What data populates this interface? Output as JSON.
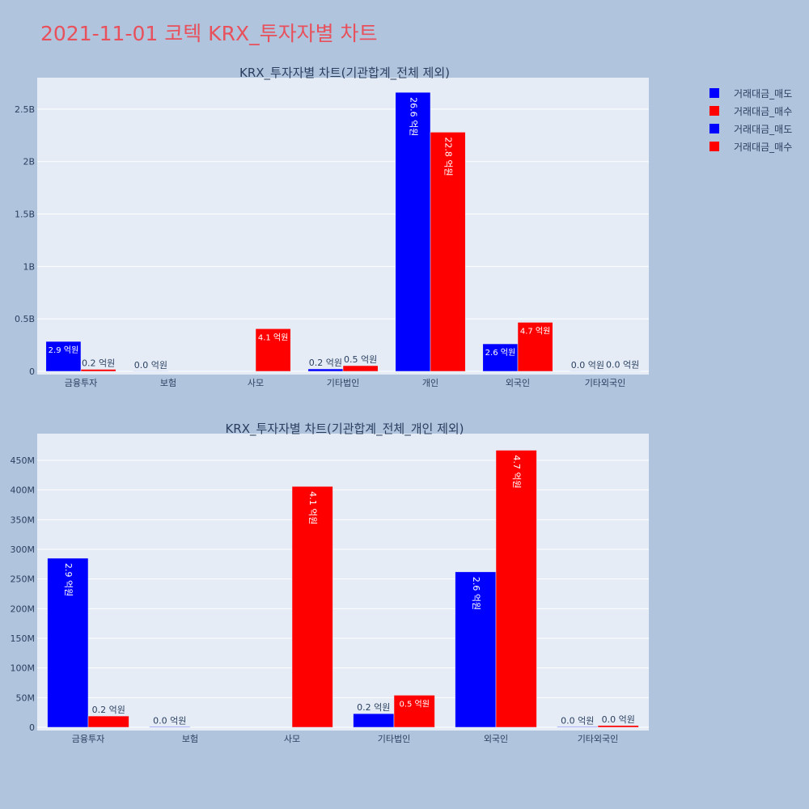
{
  "title": "2021-11-01 코텍 KRX_투자자별 차트",
  "colors": {
    "sell": "#0000ff",
    "buy": "#ff0000",
    "plot_bg": "#e5ecf6",
    "paper_bg": "#b0c4de",
    "text": "#2a3f5f"
  },
  "legend": [
    {
      "label": "거래대금_매도",
      "color": "#0000ff"
    },
    {
      "label": "거래대금_매수",
      "color": "#ff0000"
    },
    {
      "label": "거래대금_매도",
      "color": "#0000ff"
    },
    {
      "label": "거래대금_매수",
      "color": "#ff0000"
    }
  ],
  "chart_data": [
    {
      "type": "bar",
      "title": "KRX_투자자별 차트(기관합계_전체 제외)",
      "categories": [
        "금융투자",
        "보험",
        "사모",
        "기타법인",
        "개인",
        "외국인",
        "기타외국인"
      ],
      "ylim": [
        0,
        2800000000
      ],
      "yticks": [
        0,
        500000000,
        1000000000,
        1500000000,
        2000000000,
        2500000000
      ],
      "ytick_labels": [
        "0",
        "0.5B",
        "1B",
        "1.5B",
        "2B",
        "2.5B"
      ],
      "series": [
        {
          "name": "거래대금_매도",
          "color": "#0000ff",
          "values": [
            285000000,
            1000000,
            0,
            23000000,
            2660000000,
            262000000,
            1000000
          ],
          "labels": [
            "2.9 억원",
            "0.0 억원",
            "",
            "0.2 억원",
            "26.6 억원",
            "2.6 억원",
            "0.0 억원"
          ]
        },
        {
          "name": "거래대금_매수",
          "color": "#ff0000",
          "values": [
            19000000,
            0,
            406000000,
            54000000,
            2280000000,
            467000000,
            3000000
          ],
          "labels": [
            "0.2 억원",
            "",
            "4.1 억원",
            "0.5 억원",
            "22.8 억원",
            "4.7 억원",
            "0.0 억원"
          ]
        }
      ]
    },
    {
      "type": "bar",
      "title": "KRX_투자자별 차트(기관합계_전체_개인 제외)",
      "categories": [
        "금융투자",
        "보험",
        "사모",
        "기타법인",
        "외국인",
        "기타외국인"
      ],
      "ylim": [
        0,
        495000000
      ],
      "yticks": [
        0,
        50000000,
        100000000,
        150000000,
        200000000,
        250000000,
        300000000,
        350000000,
        400000000,
        450000000
      ],
      "ytick_labels": [
        "0",
        "50M",
        "100M",
        "150M",
        "200M",
        "250M",
        "300M",
        "350M",
        "400M",
        "450M"
      ],
      "series": [
        {
          "name": "거래대금_매도",
          "color": "#0000ff",
          "values": [
            285000000,
            1000000,
            0,
            23000000,
            262000000,
            1000000
          ],
          "labels": [
            "2.9 억원",
            "0.0 억원",
            "",
            "0.2 억원",
            "2.6 억원",
            "0.0 억원"
          ]
        },
        {
          "name": "거래대금_매수",
          "color": "#ff0000",
          "values": [
            19000000,
            0,
            406000000,
            54000000,
            467000000,
            3000000
          ],
          "labels": [
            "0.2 억원",
            "",
            "4.1 억원",
            "0.5 억원",
            "4.7 억원",
            "0.0 억원"
          ]
        }
      ]
    }
  ]
}
